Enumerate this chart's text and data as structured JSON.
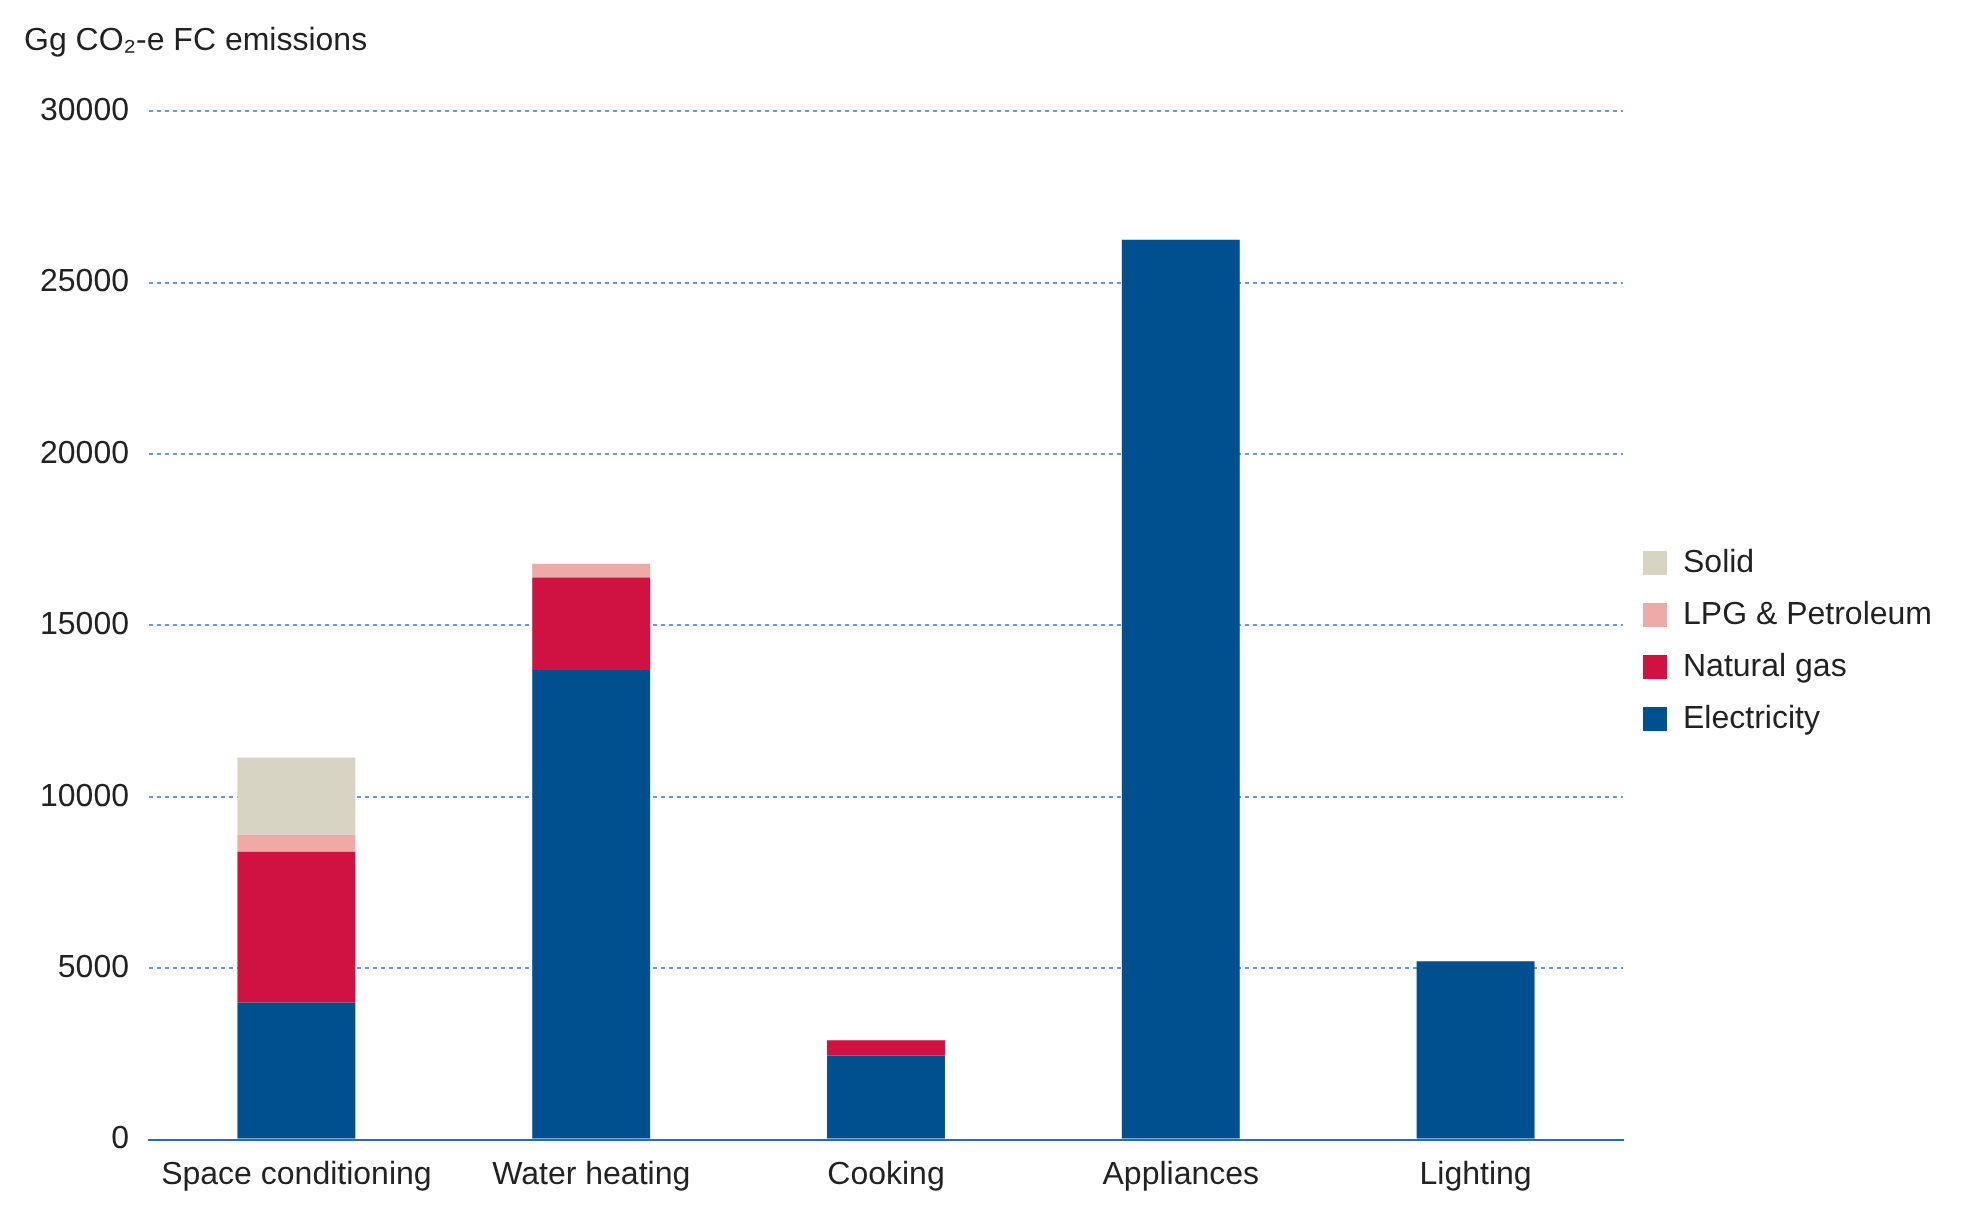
{
  "chart_data": {
    "type": "bar",
    "ylabel": "Gg CO₂-e FC emissions",
    "stacked": true,
    "categories": [
      "Space conditioning",
      "Water heating",
      "Cooking",
      "Appliances",
      "Lighting"
    ],
    "series": [
      {
        "name": "Electricity",
        "color": "#00508f",
        "values": [
          4000,
          13700,
          2450,
          26250,
          5200
        ]
      },
      {
        "name": "Natural gas",
        "color": "#d01242",
        "values": [
          4400,
          2700,
          450,
          null,
          null
        ]
      },
      {
        "name": "LPG & Petroleum",
        "color": "#eeaaa6",
        "values": [
          500,
          400,
          null,
          null,
          null
        ]
      },
      {
        "name": "Solid",
        "color": "#d8d4c3",
        "values": [
          2250,
          null,
          null,
          null,
          null
        ]
      }
    ],
    "ylim": [
      0,
      30000
    ],
    "yticks": [
      0,
      5000,
      10000,
      15000,
      20000,
      25000,
      30000
    ],
    "grid": "y",
    "legend": "right"
  }
}
